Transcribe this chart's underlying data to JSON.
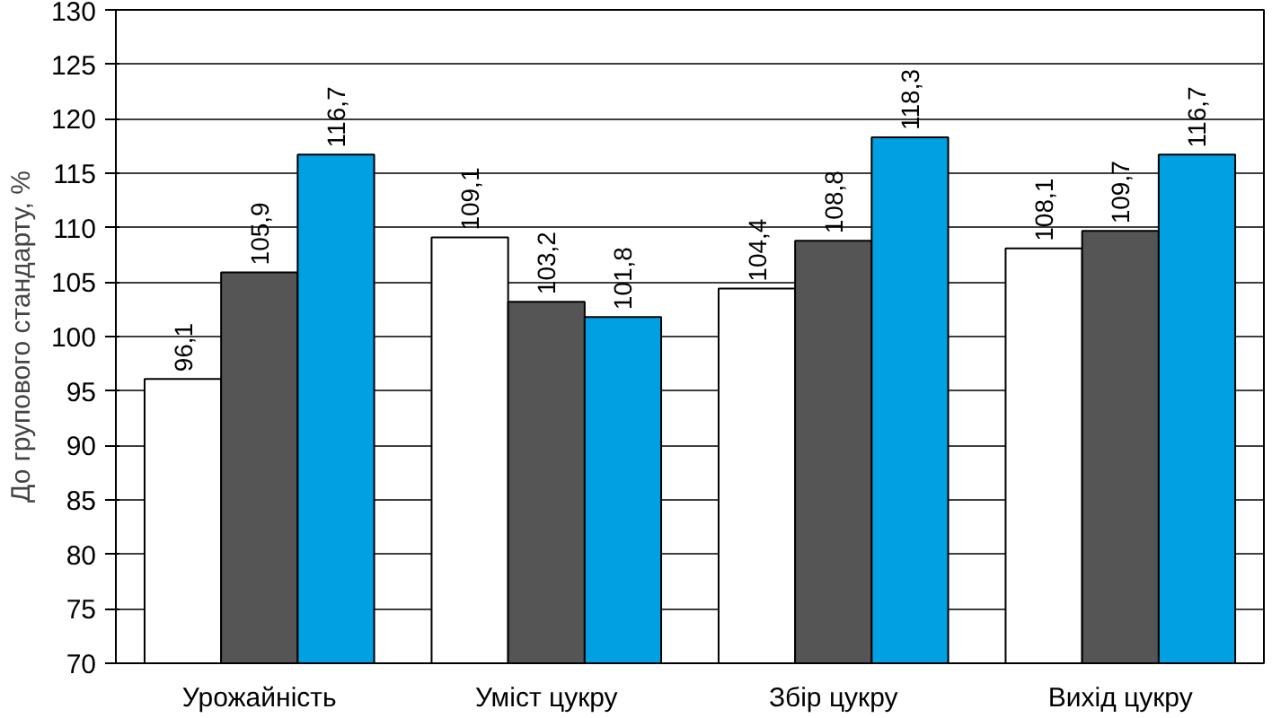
{
  "chart_data": {
    "type": "bar",
    "ylabel": "До групового стандарту, %",
    "categories": [
      "Урожайність",
      "Уміст цукру",
      "Збір цукру",
      "Вихід цукру"
    ],
    "series": [
      {
        "color": "#ffffff",
        "values": [
          96.1,
          109.1,
          104.4,
          108.1
        ],
        "value_labels": [
          "96,1",
          "109,1",
          "104,4",
          "108,1"
        ]
      },
      {
        "color": "#555555",
        "values": [
          105.9,
          103.2,
          108.8,
          109.7
        ],
        "value_labels": [
          "105,9",
          "103,2",
          "108,8",
          "109,7"
        ]
      },
      {
        "color": "#00a0e3",
        "values": [
          116.7,
          101.8,
          118.3,
          116.7
        ],
        "value_labels": [
          "116,7",
          "101,8",
          "118,3",
          "116,7"
        ]
      }
    ],
    "ylim": [
      70,
      130
    ],
    "yticks": [
      70,
      75,
      80,
      85,
      90,
      95,
      100,
      105,
      110,
      115,
      120,
      125,
      130
    ],
    "grid": "y"
  }
}
